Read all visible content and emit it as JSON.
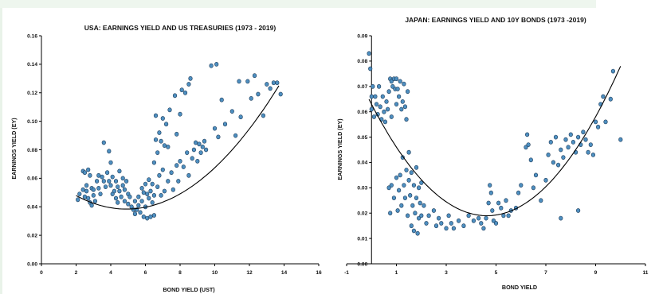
{
  "colors": {
    "point_fill": "#4e8fc0",
    "point_stroke": "#1e3c5a",
    "trend": "#000000",
    "axis": "#000000"
  },
  "chart_data": [
    {
      "type": "scatter",
      "title": "USA: EARNINGS YIELD AND US TREASURIES (1973 - 2019)",
      "xlabel": "BOND YIELD (UST)",
      "ylabel": "EARNINGS YIELD (EY)",
      "xlim": [
        0,
        16
      ],
      "ylim": [
        0,
        0.16
      ],
      "xticks": [
        "0",
        "2",
        "4",
        "6",
        "8",
        "10",
        "12",
        "14",
        "16"
      ],
      "yticks": [
        "0.00",
        "0.02",
        "0.04",
        "0.06",
        "0.08",
        "0.10",
        "0.12",
        "0.14",
        "0.16"
      ],
      "point_color": "#4e8fc0",
      "trendline": "quadratic",
      "trend_coef": [
        0.0654,
        -0.011,
        0.00112
      ],
      "trend_range": [
        2,
        13.7
      ],
      "points": [
        [
          2.1,
          0.045
        ],
        [
          2.2,
          0.049
        ],
        [
          2.4,
          0.052
        ],
        [
          2.4,
          0.065
        ],
        [
          2.5,
          0.064
        ],
        [
          2.5,
          0.047
        ],
        [
          2.6,
          0.055
        ],
        [
          2.6,
          0.051
        ],
        [
          2.7,
          0.066
        ],
        [
          2.7,
          0.046
        ],
        [
          2.8,
          0.062
        ],
        [
          2.8,
          0.043
        ],
        [
          2.9,
          0.053
        ],
        [
          2.9,
          0.041
        ],
        [
          3.0,
          0.052
        ],
        [
          3.0,
          0.048
        ],
        [
          3.1,
          0.044
        ],
        [
          3.2,
          0.058
        ],
        [
          3.3,
          0.062
        ],
        [
          3.3,
          0.053
        ],
        [
          3.4,
          0.049
        ],
        [
          3.5,
          0.061
        ],
        [
          3.6,
          0.085
        ],
        [
          3.6,
          0.058
        ],
        [
          3.7,
          0.054
        ],
        [
          3.8,
          0.064
        ],
        [
          3.9,
          0.079
        ],
        [
          3.9,
          0.058
        ],
        [
          4.0,
          0.071
        ],
        [
          4.0,
          0.055
        ],
        [
          4.1,
          0.061
        ],
        [
          4.1,
          0.049
        ],
        [
          4.2,
          0.051
        ],
        [
          4.3,
          0.058
        ],
        [
          4.3,
          0.046
        ],
        [
          4.4,
          0.054
        ],
        [
          4.4,
          0.043
        ],
        [
          4.5,
          0.051
        ],
        [
          4.5,
          0.065
        ],
        [
          4.6,
          0.047
        ],
        [
          4.7,
          0.055
        ],
        [
          4.7,
          0.06
        ],
        [
          4.8,
          0.044
        ],
        [
          4.8,
          0.052
        ],
        [
          4.9,
          0.058
        ],
        [
          5.0,
          0.042
        ],
        [
          5.0,
          0.049
        ],
        [
          5.1,
          0.047
        ],
        [
          5.2,
          0.04
        ],
        [
          5.3,
          0.038
        ],
        [
          5.4,
          0.044
        ],
        [
          5.4,
          0.035
        ],
        [
          5.5,
          0.038
        ],
        [
          5.6,
          0.041
        ],
        [
          5.6,
          0.047
        ],
        [
          5.7,
          0.036
        ],
        [
          5.8,
          0.044
        ],
        [
          5.8,
          0.053
        ],
        [
          5.9,
          0.033
        ],
        [
          5.9,
          0.05
        ],
        [
          6.0,
          0.04
        ],
        [
          6.0,
          0.056
        ],
        [
          6.1,
          0.032
        ],
        [
          6.1,
          0.049
        ],
        [
          6.2,
          0.046
        ],
        [
          6.2,
          0.059
        ],
        [
          6.3,
          0.051
        ],
        [
          6.3,
          0.033
        ],
        [
          6.4,
          0.043
        ],
        [
          6.4,
          0.056
        ],
        [
          6.5,
          0.034
        ],
        [
          6.5,
          0.048
        ],
        [
          6.5,
          0.071
        ],
        [
          6.6,
          0.087
        ],
        [
          6.6,
          0.104
        ],
        [
          6.7,
          0.054
        ],
        [
          6.7,
          0.078
        ],
        [
          6.8,
          0.062
        ],
        [
          6.8,
          0.092
        ],
        [
          6.9,
          0.048
        ],
        [
          6.9,
          0.086
        ],
        [
          7.0,
          0.102
        ],
        [
          7.0,
          0.066
        ],
        [
          7.1,
          0.051
        ],
        [
          7.1,
          0.083
        ],
        [
          7.2,
          0.098
        ],
        [
          7.3,
          0.058
        ],
        [
          7.3,
          0.082
        ],
        [
          7.4,
          0.108
        ],
        [
          7.5,
          0.064
        ],
        [
          7.6,
          0.052
        ],
        [
          7.7,
          0.118
        ],
        [
          7.8,
          0.069
        ],
        [
          7.8,
          0.091
        ],
        [
          7.9,
          0.058
        ],
        [
          8.0,
          0.072
        ],
        [
          8.0,
          0.105
        ],
        [
          8.1,
          0.122
        ],
        [
          8.2,
          0.068
        ],
        [
          8.3,
          0.12
        ],
        [
          8.4,
          0.078
        ],
        [
          8.5,
          0.126
        ],
        [
          8.5,
          0.062
        ],
        [
          8.6,
          0.13
        ],
        [
          8.7,
          0.074
        ],
        [
          8.8,
          0.08
        ],
        [
          8.9,
          0.085
        ],
        [
          9.0,
          0.072
        ],
        [
          9.1,
          0.084
        ],
        [
          9.2,
          0.078
        ],
        [
          9.3,
          0.082
        ],
        [
          9.4,
          0.086
        ],
        [
          9.5,
          0.08
        ],
        [
          9.8,
          0.139
        ],
        [
          10.0,
          0.095
        ],
        [
          10.1,
          0.14
        ],
        [
          10.2,
          0.089
        ],
        [
          10.4,
          0.115
        ],
        [
          10.6,
          0.098
        ],
        [
          11.0,
          0.107
        ],
        [
          11.2,
          0.09
        ],
        [
          11.4,
          0.128
        ],
        [
          11.5,
          0.103
        ],
        [
          11.9,
          0.128
        ],
        [
          12.1,
          0.116
        ],
        [
          12.3,
          0.132
        ],
        [
          12.5,
          0.119
        ],
        [
          12.8,
          0.104
        ],
        [
          13.0,
          0.126
        ],
        [
          13.2,
          0.123
        ],
        [
          13.4,
          0.127
        ],
        [
          13.6,
          0.127
        ],
        [
          13.8,
          0.119
        ]
      ]
    },
    {
      "type": "scatter",
      "title": "JAPAN: EARNINGS YIELD AND 10Y BONDS (1973 -2019)",
      "xlabel": "BOND YIELD",
      "ylabel": "EARNINGS YIELD (EY)",
      "xlim": [
        -1,
        11
      ],
      "ylim": [
        0,
        0.09
      ],
      "xticks": [
        "-1",
        "1",
        "3",
        "5",
        "7",
        "9",
        "11"
      ],
      "yticks": [
        "0.00",
        "0.01",
        "0.02",
        "0.03",
        "0.04",
        "0.05",
        "0.06",
        "0.07",
        "0.08",
        "0.09"
      ],
      "point_color": "#4e8fc0",
      "trendline": "quadratic",
      "trend_coef": [
        0.063,
        -0.019,
        0.00205
      ],
      "trend_range": [
        -0.1,
        10
      ],
      "points": [
        [
          -0.1,
          0.083
        ],
        [
          -0.05,
          0.077
        ],
        [
          0.0,
          0.066
        ],
        [
          0.0,
          0.061
        ],
        [
          0.05,
          0.07
        ],
        [
          0.1,
          0.058
        ],
        [
          0.15,
          0.066
        ],
        [
          0.2,
          0.063
        ],
        [
          0.25,
          0.059
        ],
        [
          0.3,
          0.07
        ],
        [
          0.35,
          0.062
        ],
        [
          0.4,
          0.057
        ],
        [
          0.45,
          0.066
        ],
        [
          0.5,
          0.06
        ],
        [
          0.55,
          0.056
        ],
        [
          0.6,
          0.064
        ],
        [
          0.65,
          0.061
        ],
        [
          0.7,
          0.068
        ],
        [
          0.75,
          0.073
        ],
        [
          0.8,
          0.058
        ],
        [
          0.8,
          0.072
        ],
        [
          0.85,
          0.07
        ],
        [
          0.9,
          0.073
        ],
        [
          0.95,
          0.069
        ],
        [
          1.0,
          0.073
        ],
        [
          1.0,
          0.063
        ],
        [
          1.05,
          0.069
        ],
        [
          1.1,
          0.066
        ],
        [
          1.15,
          0.072
        ],
        [
          1.2,
          0.061
        ],
        [
          1.25,
          0.064
        ],
        [
          1.3,
          0.071
        ],
        [
          1.35,
          0.062
        ],
        [
          1.4,
          0.057
        ],
        [
          1.45,
          0.068
        ],
        [
          0.7,
          0.03
        ],
        [
          0.75,
          0.02
        ],
        [
          0.8,
          0.031
        ],
        [
          0.9,
          0.026
        ],
        [
          1.0,
          0.034
        ],
        [
          1.05,
          0.021
        ],
        [
          1.1,
          0.029
        ],
        [
          1.15,
          0.035
        ],
        [
          1.2,
          0.023
        ],
        [
          1.25,
          0.042
        ],
        [
          1.3,
          0.031
        ],
        [
          1.35,
          0.026
        ],
        [
          1.4,
          0.037
        ],
        [
          1.45,
          0.019
        ],
        [
          1.5,
          0.033
        ],
        [
          1.5,
          0.044
        ],
        [
          1.55,
          0.027
        ],
        [
          1.6,
          0.036
        ],
        [
          1.6,
          0.015
        ],
        [
          1.65,
          0.023
        ],
        [
          1.7,
          0.031
        ],
        [
          1.7,
          0.013
        ],
        [
          1.75,
          0.02
        ],
        [
          1.8,
          0.038
        ],
        [
          1.8,
          0.026
        ],
        [
          1.85,
          0.012
        ],
        [
          1.9,
          0.03
        ],
        [
          1.9,
          0.018
        ],
        [
          1.95,
          0.024
        ],
        [
          2.0,
          0.032
        ],
        [
          2.0,
          0.019
        ],
        [
          2.1,
          0.023
        ],
        [
          2.2,
          0.016
        ],
        [
          2.3,
          0.019
        ],
        [
          2.5,
          0.021
        ],
        [
          2.6,
          0.015
        ],
        [
          2.7,
          0.018
        ],
        [
          2.8,
          0.016
        ],
        [
          3.0,
          0.014
        ],
        [
          3.1,
          0.019
        ],
        [
          3.2,
          0.016
        ],
        [
          3.3,
          0.014
        ],
        [
          3.5,
          0.017
        ],
        [
          3.7,
          0.015
        ],
        [
          3.9,
          0.019
        ],
        [
          4.1,
          0.017
        ],
        [
          4.3,
          0.018
        ],
        [
          4.4,
          0.016
        ],
        [
          4.5,
          0.014
        ],
        [
          4.6,
          0.018
        ],
        [
          4.7,
          0.024
        ],
        [
          4.75,
          0.031
        ],
        [
          4.8,
          0.028
        ],
        [
          4.85,
          0.021
        ],
        [
          4.9,
          0.017
        ],
        [
          5.0,
          0.016
        ],
        [
          5.1,
          0.024
        ],
        [
          5.2,
          0.022
        ],
        [
          5.3,
          0.019
        ],
        [
          5.4,
          0.025
        ],
        [
          5.5,
          0.019
        ],
        [
          5.6,
          0.021
        ],
        [
          5.8,
          0.022
        ],
        [
          5.9,
          0.028
        ],
        [
          6.0,
          0.031
        ],
        [
          6.2,
          0.046
        ],
        [
          6.25,
          0.051
        ],
        [
          6.3,
          0.047
        ],
        [
          6.4,
          0.041
        ],
        [
          6.5,
          0.03
        ],
        [
          6.6,
          0.035
        ],
        [
          6.8,
          0.025
        ],
        [
          7.0,
          0.033
        ],
        [
          7.1,
          0.043
        ],
        [
          7.2,
          0.048
        ],
        [
          7.3,
          0.04
        ],
        [
          7.4,
          0.05
        ],
        [
          7.5,
          0.039
        ],
        [
          7.6,
          0.045
        ],
        [
          7.7,
          0.042
        ],
        [
          7.8,
          0.049
        ],
        [
          7.9,
          0.046
        ],
        [
          8.0,
          0.051
        ],
        [
          8.1,
          0.048
        ],
        [
          8.2,
          0.044
        ],
        [
          8.3,
          0.05
        ],
        [
          8.4,
          0.047
        ],
        [
          8.5,
          0.052
        ],
        [
          8.6,
          0.049
        ],
        [
          8.7,
          0.044
        ],
        [
          8.8,
          0.047
        ],
        [
          8.9,
          0.043
        ],
        [
          9.0,
          0.056
        ],
        [
          9.1,
          0.054
        ],
        [
          9.2,
          0.063
        ],
        [
          9.3,
          0.066
        ],
        [
          9.4,
          0.056
        ],
        [
          9.6,
          0.065
        ],
        [
          9.7,
          0.076
        ],
        [
          7.6,
          0.018
        ],
        [
          8.3,
          0.021
        ],
        [
          10.0,
          0.049
        ]
      ]
    }
  ]
}
